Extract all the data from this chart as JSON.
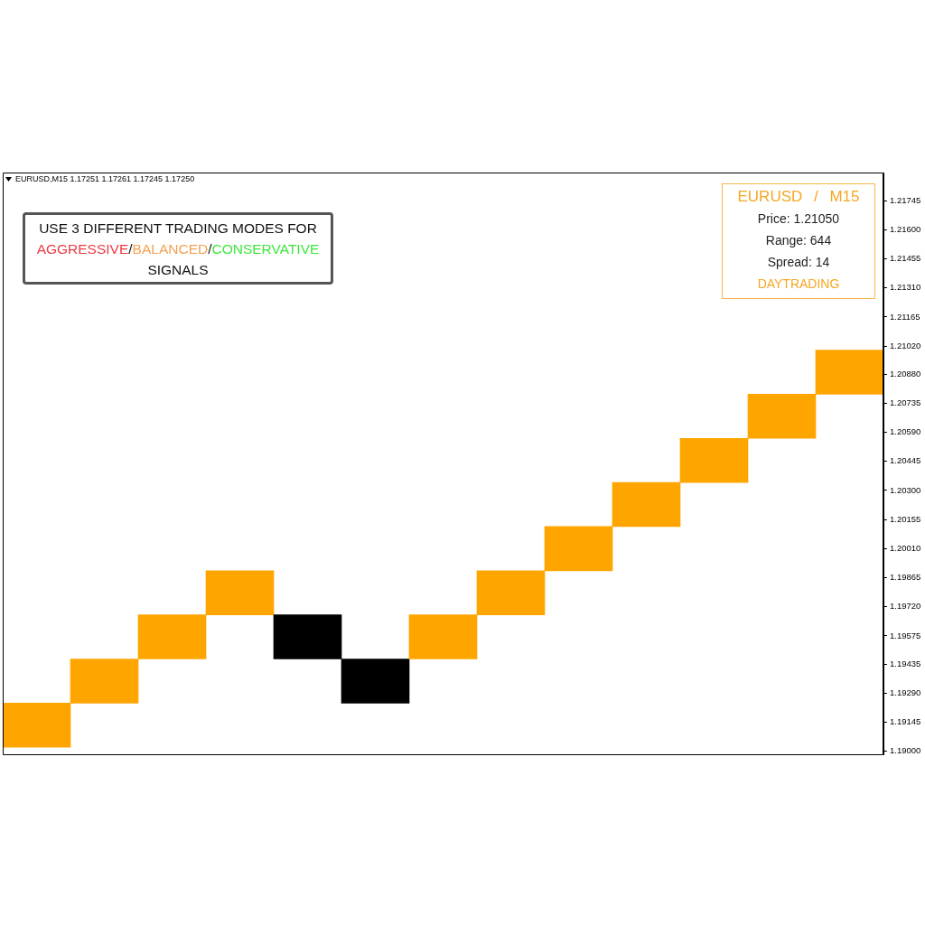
{
  "chart_data": {
    "type": "bar",
    "title": "EURUSD,M15 1.17251 1.17261 1.17245 1.17250",
    "annotations": [
      "USE 3 DIFFERENT TRADING MODES FOR AGGRESSIVE/BALANCED/CONSERVATIVE SIGNALS",
      "EURUSD / M15",
      "Price: 1.21050",
      "Range: 644",
      "Spread: 14",
      "DAYTRADING"
    ],
    "categories": [
      null,
      null,
      null,
      null,
      null,
      null,
      null,
      null,
      null,
      null,
      null,
      null,
      null
    ],
    "base": [
      1.1902,
      1.1924,
      1.1946,
      1.1968,
      1.1946,
      1.1924,
      1.1946,
      1.1968,
      1.199,
      1.2012,
      1.2034,
      1.2056,
      1.2078
    ],
    "values": [
      0.0022,
      0.0022,
      0.0022,
      0.0022,
      0.0022,
      0.0022,
      0.0022,
      0.0022,
      0.0022,
      0.0022,
      0.0022,
      0.0022,
      0.0022
    ],
    "colors": [
      "#ffa500",
      "#ffa500",
      "#ffa500",
      "#ffa500",
      "#000000",
      "#000000",
      "#ffa500",
      "#ffa500",
      "#ffa500",
      "#ffa500",
      "#ffa500",
      "#ffa500",
      "#ffa500"
    ],
    "ylim": [
      1.18985,
      1.21885
    ],
    "yticks": [
      {
        "value": 1.19,
        "label": "1.19000"
      },
      1.19145,
      {
        "value": 1.1929,
        "label": "1.19290"
      },
      1.19435,
      1.19575,
      {
        "value": 1.1972,
        "label": "1.19720"
      },
      1.19865,
      {
        "value": 1.2001,
        "label": "1.20010"
      },
      1.20155,
      {
        "value": 1.203,
        "label": "1.20300"
      },
      1.20445,
      {
        "value": 1.2059,
        "label": "1.20590"
      },
      1.20735,
      {
        "value": 1.2088,
        "label": "1.20880"
      },
      {
        "value": 1.2102,
        "label": "1.21020"
      },
      1.21165,
      {
        "value": 1.2131,
        "label": "1.21310"
      },
      1.21455,
      {
        "value": 1.216,
        "label": "1.21600"
      },
      1.21745
    ],
    "tick_labels": "y",
    "legend": false,
    "grid": false
  }
}
